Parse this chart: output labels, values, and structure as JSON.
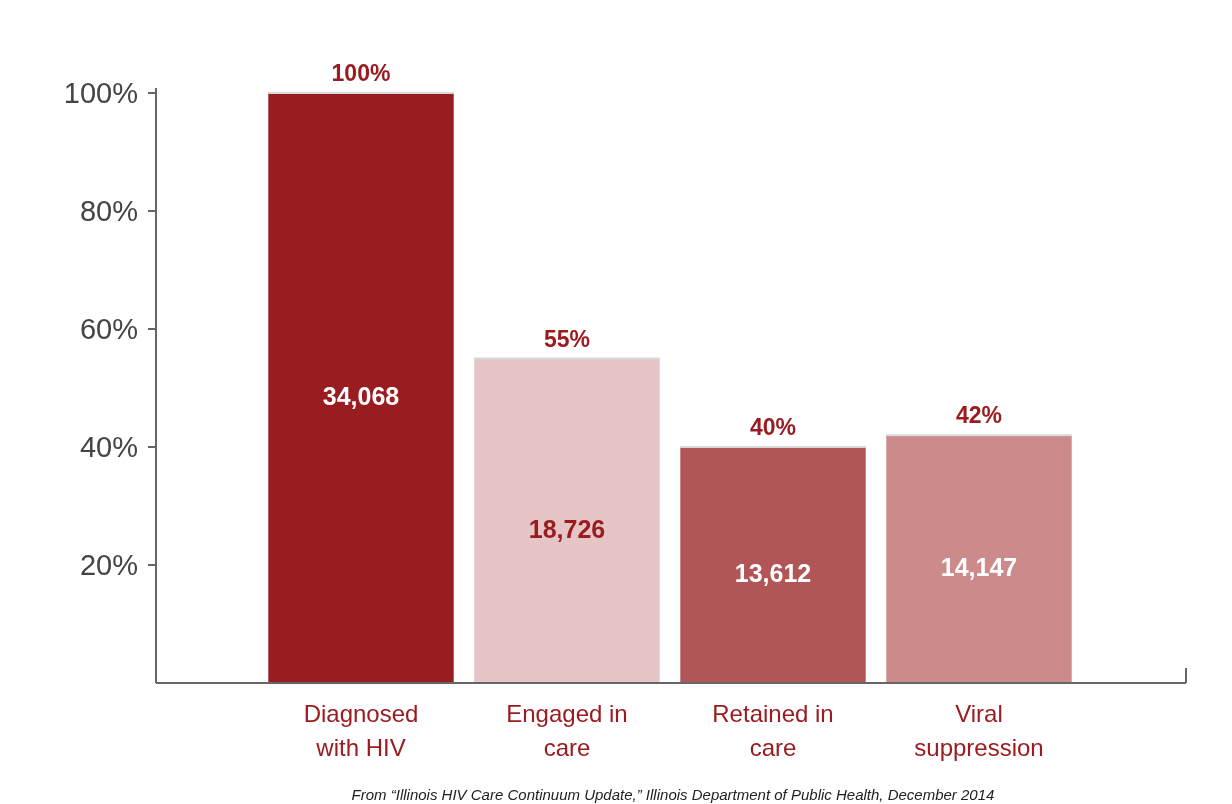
{
  "chart_data": {
    "type": "bar",
    "categories": [
      "Diagnosed with HIV",
      "Engaged in care",
      "Retained in care",
      "Viral suppression"
    ],
    "values": [
      100,
      55,
      40,
      42
    ],
    "colors": [
      "#991c20",
      "#e5c5c6",
      "#b15556",
      "#cc8a8b"
    ],
    "value_labels": [
      "100%",
      "55%",
      "40%",
      "42%"
    ],
    "ylim": [
      0,
      100
    ],
    "yticks": [
      {
        "value": 20,
        "label": "20%"
      },
      {
        "value": 40,
        "label": "40%"
      },
      {
        "value": 60,
        "label": "60%"
      },
      {
        "value": 80,
        "label": "80%"
      },
      {
        "value": 100,
        "label": "100%"
      }
    ],
    "grid": false,
    "annotations": [
      "34,068",
      "18,726",
      "13,612",
      "14,147",
      "From “Illinois HIV Care Continuum Update,” Illinois Department of Public Health, December 2014"
    ]
  }
}
